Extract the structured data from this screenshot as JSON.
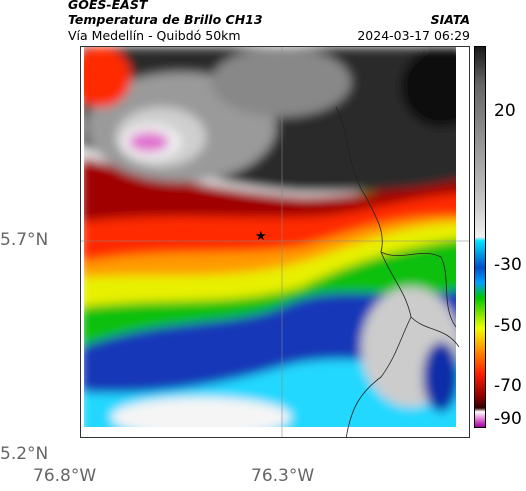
{
  "header": {
    "satellite": "GOES-EAST",
    "product": "Temperatura de Brillo CH13",
    "route": "Vía Medellín - Quibdó 50km",
    "org": "SIATA",
    "datetime": "2024-03-17 06:29"
  },
  "map": {
    "lat_labels": [
      "5.7°N",
      "5.2°N"
    ],
    "lon_labels": [
      "76.8°W",
      "76.3°W"
    ],
    "marker": "star",
    "gridlines": true
  },
  "colorbar": {
    "tick_labels": [
      "20",
      "-30",
      "-50",
      "-70",
      "-90"
    ],
    "colors": [
      "#1a1a1a",
      "#666666",
      "#bdbdbd",
      "#f0f0f0",
      "#00e5ff",
      "#0050c8",
      "#00a0ff",
      "#00c800",
      "#f0ff00",
      "#ff8c00",
      "#ff1e00",
      "#8c0000",
      "#300000",
      "#ffffff",
      "#e070d0",
      "#a000a0"
    ]
  },
  "icons": {
    "marker": "star-icon"
  }
}
